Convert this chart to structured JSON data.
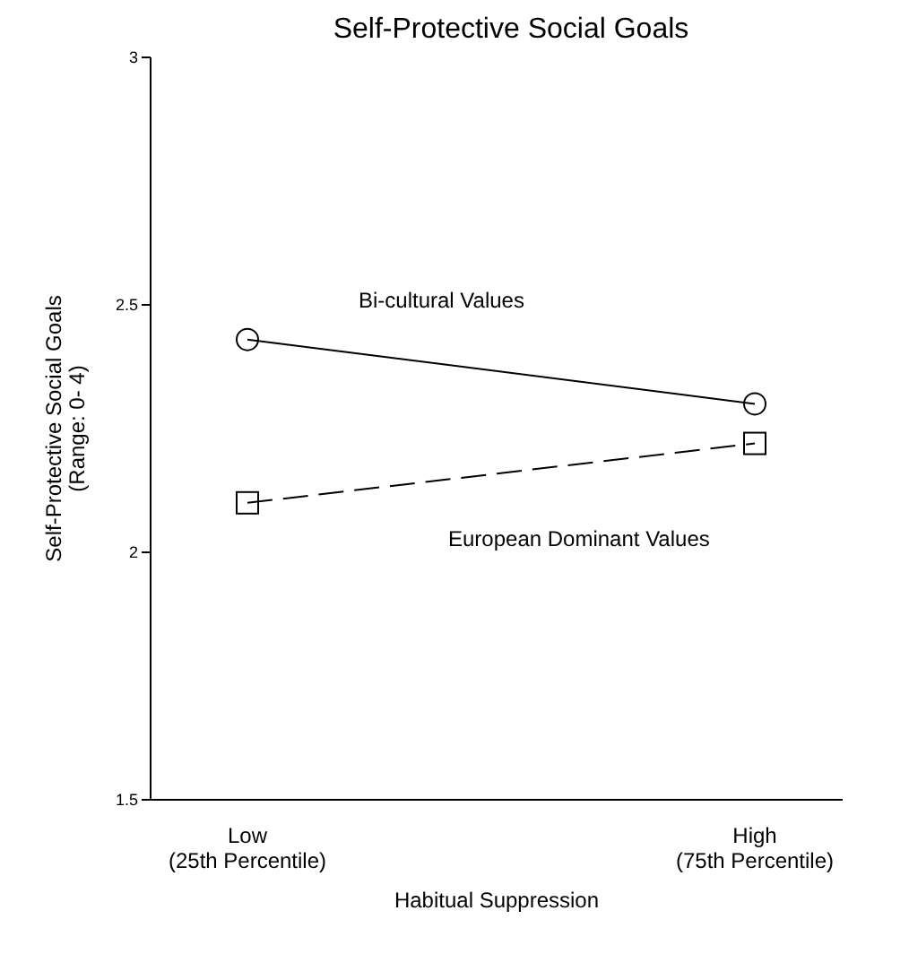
{
  "chart_data": {
    "type": "line",
    "title": "Self-Protective Social Goals",
    "xlabel": "Habitual Suppression",
    "ylabel": "Self-Protective Social Goals\n(Range: 0- 4)",
    "categories": [
      "Low\n(25th Percentile)",
      "High\n(75th Percentile)"
    ],
    "series": [
      {
        "name": "Bi-cultural Values",
        "color": "#000000",
        "values": [
          2.43,
          2.3
        ],
        "marker": "circle",
        "line_style": "solid"
      },
      {
        "name": "European Dominant Values",
        "color": "#000000",
        "values": [
          2.1,
          2.22
        ],
        "marker": "square",
        "line_style": "dashed"
      }
    ],
    "ylim": [
      1.5,
      3
    ],
    "yticks": [
      1.5,
      2,
      2.5,
      3
    ],
    "grid": false,
    "legend": false
  }
}
